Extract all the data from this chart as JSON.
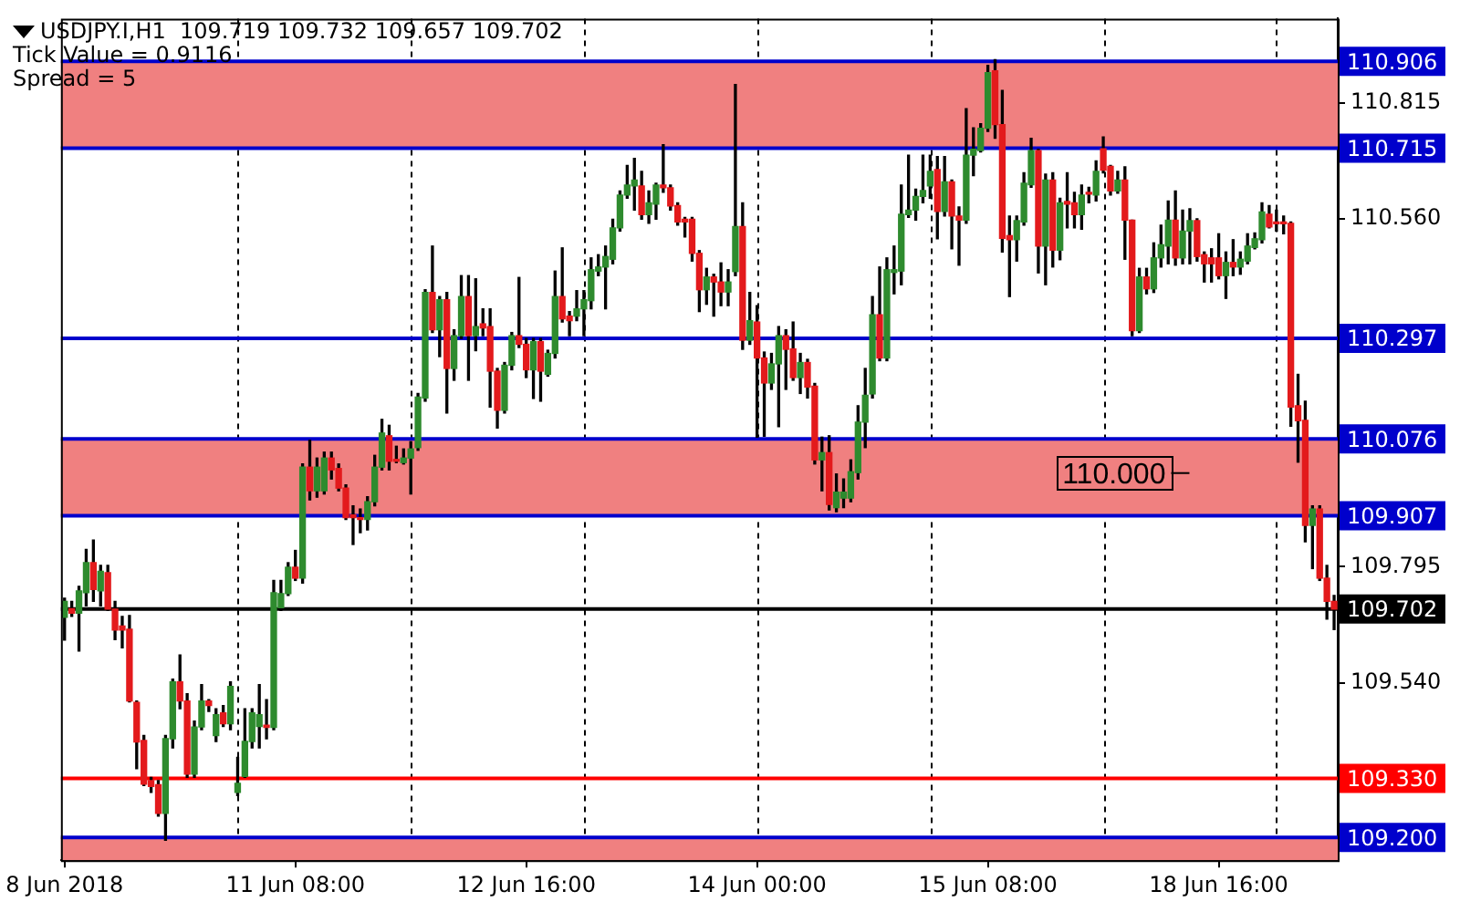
{
  "chart_data": {
    "type": "candlestick",
    "title": "USDJPY.I,H1  109.719 109.732 109.657 109.702",
    "annotations": [
      "Tick Value = 0.9116",
      "Spread = 5",
      "110.000"
    ],
    "categories": [
      "8 Jun 2018",
      null,
      null,
      null,
      null,
      null,
      null,
      null,
      null,
      null,
      null,
      null,
      null,
      null,
      null,
      null,
      null,
      null,
      null,
      null,
      null,
      null,
      null,
      null,
      null,
      null,
      null,
      null,
      null,
      null,
      null,
      null,
      "11 Jun 08:00",
      null,
      null,
      null,
      null,
      null,
      null,
      null,
      null,
      null,
      null,
      null,
      null,
      null,
      null,
      null,
      null,
      null,
      null,
      null,
      null,
      null,
      null,
      null,
      null,
      null,
      null,
      null,
      null,
      null,
      null,
      null,
      "12 Jun 16:00",
      null,
      null,
      null,
      null,
      null,
      null,
      null,
      null,
      null,
      null,
      null,
      null,
      null,
      null,
      null,
      null,
      null,
      null,
      null,
      null,
      null,
      null,
      null,
      null,
      null,
      null,
      null,
      null,
      null,
      null,
      null,
      "14 Jun 00:00",
      null,
      null,
      null,
      null,
      null,
      null,
      null,
      null,
      null,
      null,
      null,
      null,
      null,
      null,
      null,
      null,
      null,
      null,
      null,
      null,
      null,
      null,
      null,
      null,
      null,
      null,
      null,
      null,
      null,
      null,
      null,
      "15 Jun 08:00",
      null,
      null,
      null,
      null,
      null,
      null,
      null,
      null,
      null,
      null,
      null,
      null,
      null,
      null,
      null,
      null,
      null,
      null,
      null,
      null,
      null,
      null,
      null,
      null,
      null,
      null,
      null,
      null,
      null,
      null,
      null,
      "18 Jun 16:00",
      null,
      null,
      null,
      null,
      null,
      null,
      null,
      null,
      null,
      null,
      null,
      null,
      null,
      null,
      null,
      null
    ],
    "ohlc": [
      [
        109.684,
        109.726,
        109.634,
        109.719
      ],
      [
        109.703,
        109.719,
        109.686,
        109.693
      ],
      [
        109.693,
        109.752,
        109.61,
        109.742
      ],
      [
        109.738,
        109.833,
        109.709,
        109.804
      ],
      [
        109.804,
        109.854,
        109.719,
        109.745
      ],
      [
        109.742,
        109.798,
        109.709,
        109.785
      ],
      [
        109.782,
        109.798,
        109.699,
        109.702
      ],
      [
        109.702,
        109.719,
        109.635,
        109.656
      ],
      [
        109.665,
        109.686,
        109.617,
        109.656
      ],
      [
        109.658,
        109.688,
        109.498,
        109.5
      ],
      [
        109.497,
        109.5,
        109.351,
        109.41
      ],
      [
        109.413,
        109.424,
        109.314,
        109.317
      ],
      [
        109.325,
        109.332,
        109.299,
        109.312
      ],
      [
        109.316,
        109.325,
        109.247,
        109.253
      ],
      [
        109.253,
        109.424,
        109.194,
        109.417
      ],
      [
        109.417,
        109.548,
        109.397,
        109.542
      ],
      [
        109.542,
        109.601,
        109.483,
        109.5
      ],
      [
        109.5,
        109.516,
        109.332,
        109.339
      ],
      [
        109.339,
        109.456,
        109.332,
        109.443
      ],
      [
        109.443,
        109.536,
        109.437,
        109.5
      ],
      [
        109.5,
        109.503,
        109.477,
        109.49
      ],
      [
        109.424,
        109.483,
        109.411,
        109.47
      ],
      [
        109.474,
        109.49,
        109.444,
        109.45
      ],
      [
        109.45,
        109.542,
        109.437,
        109.532
      ],
      [
        109.299,
        109.376,
        109.292,
        109.319
      ],
      [
        109.334,
        109.483,
        109.332,
        109.411
      ],
      [
        109.411,
        109.483,
        109.397,
        109.474
      ],
      [
        109.444,
        109.536,
        109.397,
        109.47
      ],
      [
        109.447,
        109.503,
        109.417,
        109.442
      ],
      [
        109.442,
        109.765,
        109.437,
        109.738
      ],
      [
        109.705,
        109.765,
        109.699,
        109.736
      ],
      [
        109.736,
        109.804,
        109.732,
        109.794
      ],
      [
        109.794,
        109.831,
        109.765,
        109.77
      ],
      [
        109.77,
        110.021,
        109.759,
        110.014
      ],
      [
        110.014,
        110.073,
        109.942,
        109.962
      ],
      [
        109.962,
        110.034,
        109.948,
        110.014
      ],
      [
        109.962,
        110.047,
        109.955,
        110.034
      ],
      [
        110.034,
        110.047,
        109.988,
        110.008
      ],
      [
        110.011,
        110.021,
        109.962,
        109.968
      ],
      [
        109.968,
        109.975,
        109.899,
        109.903
      ],
      [
        109.909,
        109.929,
        109.844,
        109.903
      ],
      [
        109.903,
        109.922,
        109.87,
        109.899
      ],
      [
        109.899,
        109.949,
        109.876,
        109.938
      ],
      [
        109.938,
        110.04,
        109.929,
        110.014
      ],
      [
        110.014,
        110.119,
        110.008,
        110.089
      ],
      [
        110.083,
        110.106,
        110.008,
        110.027
      ],
      [
        110.03,
        110.06,
        110.024,
        110.027
      ],
      [
        110.024,
        110.054,
        110.021,
        110.034
      ],
      [
        110.034,
        110.07,
        109.955,
        110.054
      ],
      [
        110.057,
        110.176,
        110.051,
        110.168
      ],
      [
        110.166,
        110.404,
        110.159,
        110.398
      ],
      [
        110.398,
        110.5,
        110.31,
        110.316
      ],
      [
        110.316,
        110.389,
        110.257,
        110.382
      ],
      [
        110.382,
        110.398,
        110.133,
        110.231
      ],
      [
        110.231,
        110.316,
        110.205,
        110.303
      ],
      [
        110.303,
        110.435,
        110.297,
        110.389
      ],
      [
        110.389,
        110.435,
        110.205,
        110.303
      ],
      [
        110.303,
        110.428,
        110.27,
        110.323
      ],
      [
        110.329,
        110.362,
        110.303,
        110.32
      ],
      [
        110.323,
        110.362,
        110.146,
        110.225
      ],
      [
        110.225,
        110.231,
        110.1,
        110.139
      ],
      [
        110.139,
        110.244,
        110.133,
        110.238
      ],
      [
        110.238,
        110.31,
        110.228,
        110.303
      ],
      [
        110.303,
        110.431,
        110.277,
        110.284
      ],
      [
        110.284,
        110.297,
        110.211,
        110.228
      ],
      [
        110.228,
        110.297,
        110.165,
        110.29
      ],
      [
        110.29,
        110.297,
        110.159,
        110.225
      ],
      [
        110.218,
        110.271,
        110.214,
        110.264
      ],
      [
        110.264,
        110.445,
        110.254,
        110.389
      ],
      [
        110.389,
        110.496,
        110.333,
        110.34
      ],
      [
        110.346,
        110.356,
        110.303,
        110.336
      ],
      [
        110.346,
        110.402,
        110.336,
        110.362
      ],
      [
        110.362,
        110.402,
        110.303,
        110.382
      ],
      [
        110.38,
        110.474,
        110.362,
        110.448
      ],
      [
        110.445,
        110.481,
        110.435,
        110.454
      ],
      [
        110.454,
        110.5,
        110.362,
        110.477
      ],
      [
        110.471,
        110.559,
        110.461,
        110.54
      ],
      [
        110.54,
        110.621,
        110.533,
        110.612
      ],
      [
        110.612,
        110.677,
        110.605,
        110.634
      ],
      [
        110.632,
        110.693,
        110.579,
        110.645
      ],
      [
        110.632,
        110.664,
        110.559,
        110.569
      ],
      [
        110.569,
        110.621,
        110.55,
        110.595
      ],
      [
        110.592,
        110.638,
        110.559,
        110.634
      ],
      [
        110.634,
        110.723,
        110.618,
        110.628
      ],
      [
        110.628,
        110.634,
        110.579,
        110.588
      ],
      [
        110.589,
        110.595,
        110.546,
        110.553
      ],
      [
        110.559,
        110.563,
        110.52,
        110.553
      ],
      [
        110.559,
        110.563,
        110.467,
        110.484
      ],
      [
        110.484,
        110.49,
        110.356,
        110.404
      ],
      [
        110.404,
        110.451,
        110.372,
        110.432
      ],
      [
        110.432,
        110.438,
        110.346,
        110.421
      ],
      [
        110.421,
        110.463,
        110.369,
        110.399
      ],
      [
        110.399,
        110.448,
        110.369,
        110.421
      ],
      [
        110.444,
        110.855,
        110.435,
        110.543
      ],
      [
        110.543,
        110.595,
        110.273,
        110.293
      ],
      [
        110.293,
        110.398,
        110.284,
        110.336
      ],
      [
        110.333,
        110.369,
        110.08,
        110.254
      ],
      [
        110.254,
        110.267,
        110.082,
        110.199
      ],
      [
        110.199,
        110.264,
        110.185,
        110.241
      ],
      [
        110.241,
        110.323,
        110.103,
        110.303
      ],
      [
        110.303,
        110.316,
        110.185,
        110.273
      ],
      [
        110.274,
        110.333,
        110.205,
        110.211
      ],
      [
        110.211,
        110.264,
        110.176,
        110.244
      ],
      [
        110.244,
        110.251,
        110.166,
        110.19
      ],
      [
        110.192,
        110.198,
        110.021,
        110.03
      ],
      [
        110.03,
        110.08,
        109.962,
        110.046
      ],
      [
        110.046,
        110.083,
        109.92,
        109.932
      ],
      [
        109.925,
        109.999,
        109.916,
        109.959
      ],
      [
        109.946,
        109.988,
        109.925,
        109.959
      ],
      [
        109.946,
        110.03,
        109.938,
        110.004
      ],
      [
        110.002,
        110.149,
        109.988,
        110.113
      ],
      [
        110.113,
        110.231,
        110.057,
        110.172
      ],
      [
        110.175,
        110.389,
        110.166,
        110.349
      ],
      [
        110.349,
        110.454,
        110.248,
        110.254
      ],
      [
        110.254,
        110.474,
        110.248,
        110.448
      ],
      [
        110.442,
        110.5,
        110.395,
        110.448
      ],
      [
        110.445,
        110.634,
        110.415,
        110.57
      ],
      [
        110.569,
        110.7,
        110.563,
        110.579
      ],
      [
        110.579,
        110.625,
        110.557,
        110.609
      ],
      [
        110.609,
        110.7,
        110.595,
        110.622
      ],
      [
        110.632,
        110.7,
        110.605,
        110.664
      ],
      [
        110.668,
        110.697,
        110.516,
        110.576
      ],
      [
        110.576,
        110.697,
        110.566,
        110.641
      ],
      [
        110.641,
        110.645,
        110.494,
        110.566
      ],
      [
        110.566,
        110.586,
        110.458,
        110.557
      ],
      [
        110.557,
        110.802,
        110.55,
        110.7
      ],
      [
        110.7,
        110.76,
        110.655,
        110.713
      ],
      [
        110.71,
        110.769,
        110.707,
        110.759
      ],
      [
        110.759,
        110.897,
        110.752,
        110.881
      ],
      [
        110.885,
        110.91,
        110.737,
        110.767
      ],
      [
        110.767,
        110.842,
        110.487,
        110.517
      ],
      [
        110.523,
        110.566,
        110.389,
        110.514
      ],
      [
        110.514,
        110.566,
        110.467,
        110.556
      ],
      [
        110.553,
        110.661,
        110.546,
        110.638
      ],
      [
        110.635,
        110.737,
        110.629,
        110.71
      ],
      [
        110.71,
        110.713,
        110.441,
        110.5
      ],
      [
        110.5,
        110.658,
        110.415,
        110.645
      ],
      [
        110.645,
        110.661,
        110.454,
        110.491
      ],
      [
        110.491,
        110.605,
        110.47,
        110.595
      ],
      [
        110.598,
        110.661,
        110.54,
        110.592
      ],
      [
        110.595,
        110.618,
        110.54,
        110.569
      ],
      [
        110.569,
        110.634,
        110.537,
        110.612
      ],
      [
        110.615,
        110.629,
        110.595,
        110.614
      ],
      [
        110.612,
        110.687,
        110.599,
        110.664
      ],
      [
        110.714,
        110.74,
        110.661,
        110.667
      ],
      [
        110.675,
        110.677,
        110.612,
        110.621
      ],
      [
        110.621,
        110.664,
        110.616,
        110.645
      ],
      [
        110.645,
        110.674,
        110.471,
        110.557
      ],
      [
        110.557,
        110.557,
        110.303,
        110.314
      ],
      [
        110.314,
        110.451,
        110.31,
        110.432
      ],
      [
        110.432,
        110.451,
        110.395,
        110.406
      ],
      [
        110.406,
        110.507,
        110.398,
        110.474
      ],
      [
        110.474,
        110.546,
        110.454,
        110.503
      ],
      [
        110.5,
        110.599,
        110.461,
        110.557
      ],
      [
        110.557,
        110.621,
        110.458,
        110.474
      ],
      [
        110.474,
        110.579,
        110.461,
        110.533
      ],
      [
        110.533,
        110.582,
        110.461,
        110.556
      ],
      [
        110.556,
        110.56,
        110.467,
        110.477
      ],
      [
        110.481,
        110.487,
        110.421,
        110.461
      ],
      [
        110.474,
        110.494,
        110.421,
        110.461
      ],
      [
        110.474,
        110.527,
        110.428,
        110.435
      ],
      [
        110.435,
        110.487,
        110.385,
        110.464
      ],
      [
        110.464,
        110.514,
        110.435,
        110.454
      ],
      [
        110.454,
        110.487,
        110.438,
        110.471
      ],
      [
        110.467,
        110.527,
        110.461,
        110.5
      ],
      [
        110.497,
        110.529,
        110.494,
        110.516
      ],
      [
        110.514,
        110.595,
        110.507,
        110.575
      ],
      [
        110.57,
        110.589,
        110.54,
        110.542
      ],
      [
        110.55,
        110.579,
        110.533,
        110.549
      ],
      [
        110.55,
        110.566,
        110.527,
        110.549
      ],
      [
        110.55,
        110.553,
        110.104,
        110.146
      ],
      [
        110.149,
        110.218,
        110.025,
        110.116
      ],
      [
        110.117,
        110.159,
        109.85,
        109.886
      ],
      [
        109.886,
        109.929,
        109.791,
        109.922
      ],
      [
        109.922,
        109.929,
        109.765,
        109.77
      ],
      [
        109.77,
        109.798,
        109.68,
        109.719
      ],
      [
        109.719,
        109.732,
        109.657,
        109.702
      ]
    ],
    "colors": [
      "#2e8b2e",
      "#e31a1c",
      "#2e8b2e",
      "#2e8b2e",
      "#e31a1c",
      "#2e8b2e",
      "#e31a1c",
      "#e31a1c",
      "#e31a1c",
      "#e31a1c",
      "#e31a1c",
      "#e31a1c",
      "#e31a1c",
      "#e31a1c",
      "#2e8b2e",
      "#2e8b2e",
      "#e31a1c",
      "#e31a1c",
      "#2e8b2e",
      "#2e8b2e",
      "#e31a1c",
      "#2e8b2e",
      "#e31a1c",
      "#2e8b2e",
      "#2e8b2e",
      "#2e8b2e",
      "#2e8b2e",
      "#2e8b2e",
      "#e31a1c",
      "#2e8b2e",
      "#2e8b2e",
      "#2e8b2e",
      "#e31a1c",
      "#2e8b2e",
      "#e31a1c",
      "#2e8b2e",
      "#2e8b2e",
      "#e31a1c",
      "#e31a1c",
      "#e31a1c",
      "#e31a1c",
      "#e31a1c",
      "#2e8b2e",
      "#2e8b2e",
      "#2e8b2e",
      "#e31a1c",
      "#e31a1c",
      "#2e8b2e",
      "#2e8b2e",
      "#2e8b2e",
      "#2e8b2e",
      "#e31a1c",
      "#2e8b2e",
      "#e31a1c",
      "#2e8b2e",
      "#2e8b2e",
      "#e31a1c",
      "#2e8b2e",
      "#e31a1c",
      "#e31a1c",
      "#e31a1c",
      "#2e8b2e",
      "#2e8b2e",
      "#e31a1c",
      "#e31a1c",
      "#2e8b2e",
      "#e31a1c",
      "#2e8b2e",
      "#2e8b2e",
      "#e31a1c",
      "#e31a1c",
      "#2e8b2e",
      "#2e8b2e",
      "#2e8b2e",
      "#2e8b2e",
      "#2e8b2e",
      "#2e8b2e",
      "#2e8b2e",
      "#2e8b2e",
      "#2e8b2e",
      "#e31a1c",
      "#2e8b2e",
      "#2e8b2e",
      "#e31a1c",
      "#e31a1c",
      "#e31a1c",
      "#e31a1c",
      "#e31a1c",
      "#e31a1c",
      "#2e8b2e",
      "#e31a1c",
      "#e31a1c",
      "#2e8b2e",
      "#2e8b2e",
      "#e31a1c",
      "#2e8b2e",
      "#e31a1c",
      "#e31a1c",
      "#2e8b2e",
      "#2e8b2e",
      "#e31a1c",
      "#e31a1c",
      "#2e8b2e",
      "#e31a1c",
      "#e31a1c",
      "#2e8b2e",
      "#e31a1c",
      "#2e8b2e",
      "#2e8b2e",
      "#2e8b2e",
      "#2e8b2e",
      "#2e8b2e",
      "#2e8b2e",
      "#e31a1c",
      "#2e8b2e",
      "#2e8b2e",
      "#2e8b2e",
      "#2e8b2e",
      "#2e8b2e",
      "#2e8b2e",
      "#2e8b2e",
      "#e31a1c",
      "#2e8b2e",
      "#e31a1c",
      "#e31a1c",
      "#2e8b2e",
      "#2e8b2e",
      "#2e8b2e",
      "#2e8b2e",
      "#e31a1c",
      "#e31a1c",
      "#e31a1c",
      "#2e8b2e",
      "#2e8b2e",
      "#2e8b2e",
      "#e31a1c",
      "#2e8b2e",
      "#e31a1c",
      "#2e8b2e",
      "#e31a1c",
      "#e31a1c",
      "#2e8b2e",
      "#e31a1c",
      "#2e8b2e",
      "#e31a1c",
      "#e31a1c",
      "#2e8b2e",
      "#e31a1c",
      "#e31a1c",
      "#2e8b2e",
      "#e31a1c",
      "#2e8b2e",
      "#2e8b2e",
      "#2e8b2e",
      "#e31a1c",
      "#2e8b2e",
      "#2e8b2e",
      "#e31a1c",
      "#e31a1c",
      "#e31a1c",
      "#e31a1c",
      "#2e8b2e",
      "#e31a1c",
      "#2e8b2e",
      "#2e8b2e",
      "#2e8b2e",
      "#2e8b2e",
      "#e31a1c",
      "#e31a1c",
      "#e31a1c",
      "#e31a1c",
      "#e31a1c",
      "#e31a1c",
      "#2e8b2e",
      "#e31a1c",
      "#e31a1c",
      "#e31a1c"
    ],
    "ylim": [
      109.15,
      111.0
    ],
    "yticks": [
      {
        "value": 110.815,
        "label": "110.815"
      },
      {
        "value": 110.56,
        "label": "110.560"
      },
      {
        "value": 109.795,
        "label": "109.795"
      },
      {
        "value": 109.54,
        "label": "109.540"
      }
    ],
    "bands": [
      {
        "axis": "y",
        "from": 110.715,
        "to": 110.906,
        "color": "#f08080"
      },
      {
        "axis": "y",
        "from": 109.907,
        "to": 110.076,
        "color": "#f08080"
      },
      {
        "axis": "y",
        "from": 109.15,
        "to": 109.2,
        "color": "#f08080"
      }
    ],
    "ref_lines": [
      {
        "axis": "y",
        "value": 110.906,
        "label": "110.906",
        "color": "#0000cc"
      },
      {
        "axis": "y",
        "value": 110.715,
        "label": "110.715",
        "color": "#0000cc"
      },
      {
        "axis": "y",
        "value": 110.297,
        "label": "110.297",
        "color": "#0000cc"
      },
      {
        "axis": "y",
        "value": 110.076,
        "label": "110.076",
        "color": "#0000cc"
      },
      {
        "axis": "y",
        "value": 109.907,
        "label": "109.907",
        "color": "#0000cc"
      },
      {
        "axis": "y",
        "value": 109.702,
        "label": "109.702",
        "color": "#000000"
      },
      {
        "axis": "y",
        "value": 109.33,
        "label": "109.330",
        "color": "#ff0000"
      },
      {
        "axis": "y",
        "value": 109.2,
        "label": "109.200",
        "color": "#0000cc"
      }
    ]
  }
}
